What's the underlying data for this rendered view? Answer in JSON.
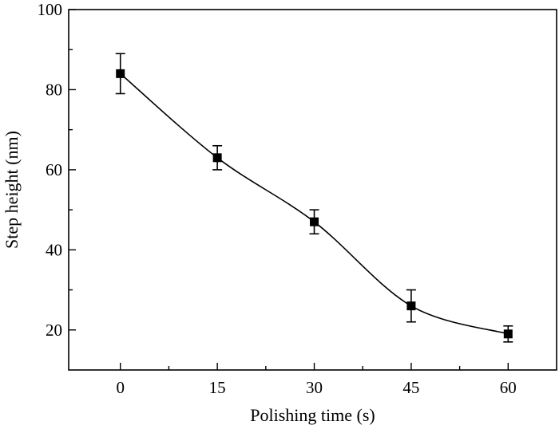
{
  "chart_data": {
    "type": "scatter",
    "xlabel": "Polishing time (s)",
    "ylabel": "Step height (nm)",
    "xlim": [
      -8,
      67.5
    ],
    "ylim": [
      10,
      100
    ],
    "xticks": [
      0,
      15,
      30,
      45,
      60
    ],
    "yticks": [
      20,
      40,
      60,
      80,
      100
    ],
    "x_minor_ticks": [
      7.5,
      22.5,
      37.5,
      52.5
    ],
    "y_minor_ticks": [
      30,
      50,
      70,
      90
    ],
    "grid": false,
    "legend": "none",
    "series": [
      {
        "x": [
          0,
          15,
          30,
          45,
          60
        ],
        "y": [
          84,
          63,
          47,
          26,
          19
        ],
        "y_err_low": [
          79,
          60,
          44,
          22,
          17
        ],
        "y_err_high": [
          89,
          66,
          50,
          30,
          21
        ],
        "marker": "square",
        "color": "#000000",
        "fit_curve": true
      }
    ]
  }
}
